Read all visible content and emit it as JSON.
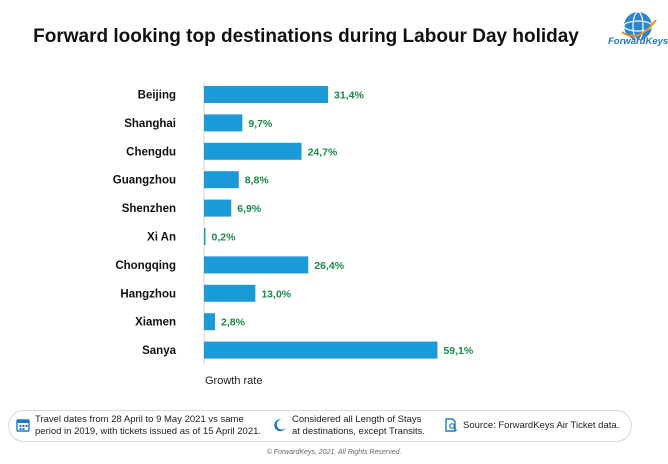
{
  "title": "Forward looking top destinations during Labour Day holiday",
  "brand": "ForwardKeys",
  "chart_data": {
    "type": "bar",
    "orientation": "horizontal",
    "categories": [
      "Beijing",
      "Shanghai",
      "Chengdu",
      "Guangzhou",
      "Shenzhen",
      "Xi An",
      "Chongqing",
      "Hangzhou",
      "Xiamen",
      "Sanya"
    ],
    "values": [
      31.4,
      9.7,
      24.7,
      8.8,
      6.9,
      0.2,
      26.4,
      13.0,
      2.8,
      59.1
    ],
    "value_labels": [
      "31,4%",
      "9,7%",
      "24,7%",
      "8,8%",
      "6,9%",
      "0,2%",
      "26,4%",
      "13,0%",
      "2,8%",
      "59,1%"
    ],
    "xlabel": "Growth rate",
    "grid": false,
    "bar_color": "#1a9ad6",
    "label_color": "#1a8a4a"
  },
  "footer": {
    "note1": [
      "Travel dates from 28 April to 9 May 2021 vs same",
      "period in 2019, with tickets issued as of 15 April 2021."
    ],
    "note2": [
      "Considered all Length of Stays",
      "at destinations, except Transits."
    ],
    "note3": "Source: ForwardKeys Air Ticket data.",
    "icons": [
      "calendar-icon",
      "moon-icon",
      "document-icon"
    ],
    "icon_color": "#1f78c8"
  },
  "copyright": "© ForwardKeys, 2021. All Rights Reserved."
}
